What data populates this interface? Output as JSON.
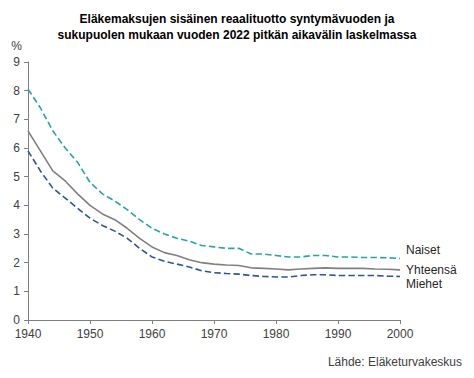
{
  "chart_data": {
    "type": "line",
    "title": "Eläkemaksujen sisäinen reaalituotto syntymävuoden ja\nsukupuolen mukaan vuoden 2022 pitkän aikavälin laskelmassa",
    "ylabel": "%",
    "source": "Lähde: Eläketurvakeskus",
    "x": [
      1940,
      1942,
      1944,
      1946,
      1948,
      1950,
      1952,
      1954,
      1956,
      1958,
      1960,
      1962,
      1964,
      1966,
      1968,
      1970,
      1972,
      1974,
      1976,
      1978,
      1980,
      1982,
      1984,
      1986,
      1988,
      1990,
      1992,
      1994,
      1996,
      1998,
      2000
    ],
    "series": [
      {
        "name": "Naiset",
        "color": "#2aa3a8",
        "line_style": "dashed",
        "values": [
          8.05,
          7.4,
          6.6,
          6.0,
          5.5,
          4.8,
          4.4,
          4.15,
          3.85,
          3.5,
          3.2,
          3.0,
          2.85,
          2.75,
          2.6,
          2.55,
          2.5,
          2.5,
          2.3,
          2.3,
          2.25,
          2.2,
          2.2,
          2.25,
          2.25,
          2.2,
          2.2,
          2.18,
          2.18,
          2.17,
          2.15
        ]
      },
      {
        "name": "Yhteensä",
        "color": "#808080",
        "line_style": "solid",
        "values": [
          6.6,
          5.9,
          5.2,
          4.85,
          4.4,
          4.0,
          3.7,
          3.5,
          3.2,
          2.85,
          2.55,
          2.35,
          2.25,
          2.1,
          2.0,
          1.95,
          1.92,
          1.9,
          1.82,
          1.8,
          1.78,
          1.75,
          1.78,
          1.8,
          1.82,
          1.8,
          1.8,
          1.8,
          1.78,
          1.77,
          1.75
        ]
      },
      {
        "name": "Miehet",
        "color": "#2f5597",
        "line_style": "dashed",
        "values": [
          5.9,
          5.2,
          4.6,
          4.25,
          3.9,
          3.55,
          3.3,
          3.1,
          2.85,
          2.5,
          2.2,
          2.05,
          1.95,
          1.85,
          1.72,
          1.65,
          1.62,
          1.6,
          1.55,
          1.52,
          1.5,
          1.5,
          1.55,
          1.58,
          1.58,
          1.55,
          1.55,
          1.55,
          1.55,
          1.53,
          1.52
        ]
      }
    ],
    "xlim": [
      1940,
      2000
    ],
    "xticks": [
      1940,
      1950,
      1960,
      1970,
      1980,
      1990,
      2000
    ],
    "ylim": [
      0,
      9
    ],
    "yticks": [
      0,
      1,
      2,
      3,
      4,
      5,
      6,
      7,
      8,
      9
    ],
    "grid": false
  }
}
